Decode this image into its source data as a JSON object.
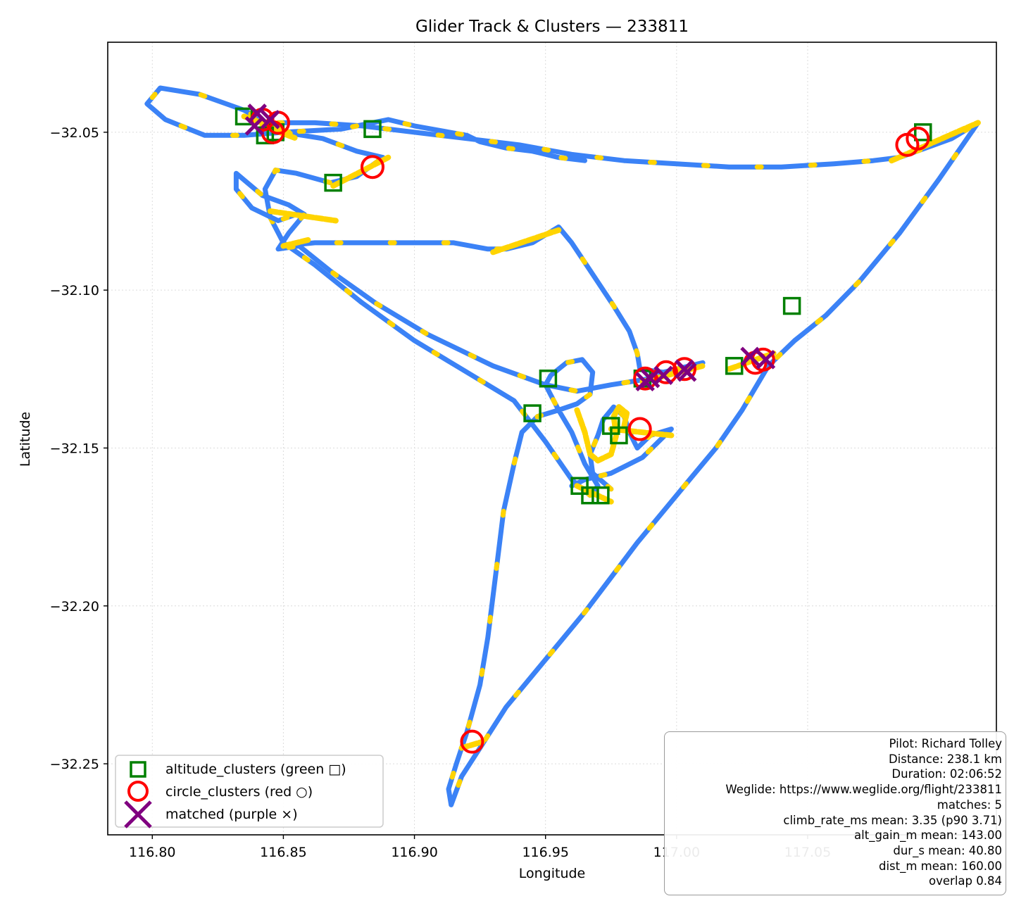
{
  "chart_data": {
    "type": "scatter",
    "title": "Glider Track & Clusters — 233811",
    "xlabel": "Longitude",
    "ylabel": "Latitude",
    "xlim": [
      116.783,
      117.122
    ],
    "ylim": [
      -32.2725,
      -32.0215
    ],
    "grid": true,
    "xticks": [
      116.8,
      116.85,
      116.9,
      116.95,
      117.0,
      117.05
    ],
    "xtick_labels": [
      "116.80",
      "116.85",
      "116.90",
      "116.95",
      "117.00",
      "117.05"
    ],
    "yticks": [
      -32.05,
      -32.1,
      -32.15,
      -32.2,
      -32.25
    ],
    "ytick_labels": [
      "−32.05",
      "−32.10",
      "−32.15",
      "−32.20",
      "−32.25"
    ],
    "colors": {
      "track": "#3b82f6",
      "climb": "#ffd400",
      "altitude_clusters": "#008000",
      "circle_clusters": "#ff0000",
      "matched": "#800080",
      "grid": "#dcdcdc"
    },
    "track": [
      [
        116.848,
        -32.047
      ],
      [
        116.862,
        -32.047
      ],
      [
        116.88,
        -32.048
      ],
      [
        116.9,
        -32.05
      ],
      [
        116.92,
        -32.052
      ],
      [
        116.94,
        -32.054
      ],
      [
        116.96,
        -32.057
      ],
      [
        116.98,
        -32.059
      ],
      [
        117.0,
        -32.06
      ],
      [
        117.02,
        -32.061
      ],
      [
        117.04,
        -32.061
      ],
      [
        117.06,
        -32.06
      ],
      [
        117.075,
        -32.059
      ],
      [
        117.085,
        -32.058
      ],
      [
        117.095,
        -32.055
      ],
      [
        117.105,
        -32.052
      ],
      [
        117.115,
        -32.047
      ],
      [
        117.1,
        -32.065
      ],
      [
        117.085,
        -32.082
      ],
      [
        117.07,
        -32.097
      ],
      [
        117.057,
        -32.108
      ],
      [
        117.045,
        -32.116
      ],
      [
        117.035,
        -32.124
      ],
      [
        117.025,
        -32.138
      ],
      [
        117.015,
        -32.15
      ],
      [
        117.005,
        -32.16
      ],
      [
        116.995,
        -32.17
      ],
      [
        116.985,
        -32.18
      ],
      [
        116.975,
        -32.191
      ],
      [
        116.965,
        -32.202
      ],
      [
        116.955,
        -32.212
      ],
      [
        116.945,
        -32.222
      ],
      [
        116.935,
        -32.232
      ],
      [
        116.925,
        -32.245
      ],
      [
        116.918,
        -32.254
      ],
      [
        116.914,
        -32.263
      ],
      [
        116.913,
        -32.258
      ],
      [
        116.916,
        -32.25
      ],
      [
        116.92,
        -32.24
      ],
      [
        116.925,
        -32.225
      ],
      [
        116.928,
        -32.21
      ],
      [
        116.931,
        -32.19
      ],
      [
        116.934,
        -32.17
      ],
      [
        116.938,
        -32.155
      ],
      [
        116.941,
        -32.145
      ],
      [
        116.947,
        -32.14
      ],
      [
        116.955,
        -32.138
      ],
      [
        116.962,
        -32.136
      ],
      [
        116.967,
        -32.133
      ],
      [
        116.968,
        -32.126
      ],
      [
        116.964,
        -32.122
      ],
      [
        116.958,
        -32.123
      ],
      [
        116.952,
        -32.127
      ],
      [
        116.95,
        -32.13
      ],
      [
        116.955,
        -32.138
      ],
      [
        116.96,
        -32.145
      ],
      [
        116.965,
        -32.155
      ],
      [
        116.97,
        -32.162
      ],
      [
        116.967,
        -32.165
      ],
      [
        116.96,
        -32.16
      ],
      [
        116.95,
        -32.148
      ],
      [
        116.938,
        -32.135
      ],
      [
        116.92,
        -32.126
      ],
      [
        116.9,
        -32.116
      ],
      [
        116.88,
        -32.104
      ],
      [
        116.862,
        -32.092
      ],
      [
        116.85,
        -32.085
      ],
      [
        116.845,
        -32.077
      ],
      [
        116.843,
        -32.068
      ],
      [
        116.847,
        -32.062
      ],
      [
        116.855,
        -32.063
      ],
      [
        116.868,
        -32.066
      ],
      [
        116.878,
        -32.064
      ],
      [
        116.888,
        -32.058
      ],
      [
        116.878,
        -32.056
      ],
      [
        116.865,
        -32.052
      ],
      [
        116.85,
        -32.05
      ],
      [
        116.835,
        -32.051
      ],
      [
        116.82,
        -32.051
      ],
      [
        116.805,
        -32.046
      ],
      [
        116.798,
        -32.041
      ],
      [
        116.803,
        -32.036
      ],
      [
        116.818,
        -32.038
      ],
      [
        116.835,
        -32.043
      ],
      [
        116.85,
        -32.05
      ],
      [
        116.872,
        -32.049
      ],
      [
        116.89,
        -32.046
      ],
      [
        116.9,
        -32.048
      ],
      [
        116.92,
        -32.051
      ],
      [
        116.925,
        -32.053
      ],
      [
        116.935,
        -32.055
      ],
      [
        116.945,
        -32.056
      ],
      [
        116.955,
        -32.058
      ],
      [
        116.965,
        -32.059
      ]
    ],
    "track2": [
      [
        116.85,
        -32.086
      ],
      [
        116.862,
        -32.085
      ],
      [
        116.88,
        -32.085
      ],
      [
        116.9,
        -32.085
      ],
      [
        116.915,
        -32.085
      ],
      [
        116.928,
        -32.087
      ],
      [
        116.935,
        -32.087
      ],
      [
        116.945,
        -32.085
      ],
      [
        116.955,
        -32.08
      ],
      [
        116.96,
        -32.085
      ],
      [
        116.968,
        -32.095
      ],
      [
        116.976,
        -32.105
      ],
      [
        116.982,
        -32.113
      ],
      [
        116.985,
        -32.12
      ],
      [
        116.986,
        -32.125
      ],
      [
        116.995,
        -32.126
      ],
      [
        117.005,
        -32.124
      ],
      [
        117.01,
        -32.123
      ],
      [
        117.0,
        -32.126
      ],
      [
        116.99,
        -32.128
      ],
      [
        116.975,
        -32.13
      ],
      [
        116.962,
        -32.132
      ],
      [
        116.95,
        -32.13
      ],
      [
        116.93,
        -32.124
      ],
      [
        116.905,
        -32.114
      ],
      [
        116.885,
        -32.104
      ],
      [
        116.868,
        -32.094
      ],
      [
        116.856,
        -32.086
      ],
      [
        116.848,
        -32.087
      ],
      [
        116.852,
        -32.082
      ],
      [
        116.858,
        -32.076
      ],
      [
        116.852,
        -32.073
      ],
      [
        116.842,
        -32.07
      ],
      [
        116.832,
        -32.063
      ],
      [
        116.832,
        -32.068
      ],
      [
        116.838,
        -32.074
      ],
      [
        116.848,
        -32.078
      ],
      [
        116.855,
        -32.076
      ]
    ],
    "track3": [
      [
        116.975,
        -32.163
      ],
      [
        116.968,
        -32.158
      ],
      [
        116.967,
        -32.152
      ],
      [
        116.97,
        -32.146
      ],
      [
        116.972,
        -32.141
      ],
      [
        116.976,
        -32.137
      ],
      [
        116.98,
        -32.14
      ],
      [
        116.982,
        -32.145
      ],
      [
        116.985,
        -32.15
      ],
      [
        116.99,
        -32.146
      ],
      [
        116.998,
        -32.144
      ],
      [
        116.987,
        -32.153
      ],
      [
        116.975,
        -32.158
      ],
      [
        116.965,
        -32.16
      ],
      [
        116.96,
        -32.162
      ]
    ],
    "climb_segments": [
      [
        [
          116.962,
          -32.138
        ],
        [
          116.965,
          -32.145
        ],
        [
          116.967,
          -32.152
        ],
        [
          116.97,
          -32.154
        ],
        [
          116.975,
          -32.152
        ],
        [
          116.977,
          -32.146
        ],
        [
          116.976,
          -32.14
        ],
        [
          116.978,
          -32.137
        ],
        [
          116.981,
          -32.139
        ],
        [
          116.98,
          -32.143
        ]
      ],
      [
        [
          116.975,
          -32.144
        ],
        [
          116.998,
          -32.146
        ]
      ],
      [
        [
          116.987,
          -32.129
        ],
        [
          117.01,
          -32.124
        ]
      ],
      [
        [
          117.02,
          -32.125
        ],
        [
          117.037,
          -32.12
        ]
      ],
      [
        [
          116.835,
          -32.045
        ],
        [
          116.852,
          -32.05
        ]
      ],
      [
        [
          116.842,
          -32.048
        ],
        [
          116.855,
          -32.052
        ]
      ],
      [
        [
          116.869,
          -32.067
        ],
        [
          116.89,
          -32.058
        ]
      ],
      [
        [
          116.845,
          -32.075
        ],
        [
          116.87,
          -32.078
        ]
      ],
      [
        [
          116.85,
          -32.086
        ],
        [
          116.86,
          -32.084
        ]
      ],
      [
        [
          116.93,
          -32.088
        ],
        [
          116.955,
          -32.081
        ]
      ],
      [
        [
          117.082,
          -32.059
        ],
        [
          117.115,
          -32.047
        ]
      ],
      [
        [
          116.962,
          -32.162
        ],
        [
          116.975,
          -32.167
        ]
      ],
      [
        [
          116.918,
          -32.245
        ],
        [
          116.926,
          -32.243
        ]
      ]
    ],
    "altitude_clusters": [
      [
        116.835,
        -32.045
      ],
      [
        116.843,
        -32.051
      ],
      [
        116.847,
        -32.05
      ],
      [
        116.884,
        -32.049
      ],
      [
        116.869,
        -32.066
      ],
      [
        117.094,
        -32.05
      ],
      [
        117.044,
        -32.105
      ],
      [
        117.022,
        -32.124
      ],
      [
        116.987,
        -32.128
      ],
      [
        116.951,
        -32.128
      ],
      [
        116.945,
        -32.139
      ],
      [
        116.975,
        -32.143
      ],
      [
        116.978,
        -32.146
      ],
      [
        116.963,
        -32.162
      ],
      [
        116.967,
        -32.165
      ],
      [
        116.971,
        -32.165
      ]
    ],
    "circle_clusters": [
      [
        116.842,
        -32.046
      ],
      [
        116.848,
        -32.047
      ],
      [
        116.846,
        -32.05
      ],
      [
        116.884,
        -32.061
      ],
      [
        117.088,
        -32.054
      ],
      [
        117.092,
        -32.052
      ],
      [
        117.033,
        -32.122
      ],
      [
        117.03,
        -32.123
      ],
      [
        117.003,
        -32.125
      ],
      [
        116.996,
        -32.126
      ],
      [
        116.988,
        -32.128
      ],
      [
        116.986,
        -32.144
      ],
      [
        116.922,
        -32.243
      ]
    ],
    "matched": [
      [
        116.84,
        -32.044
      ],
      [
        116.845,
        -32.046
      ],
      [
        116.839,
        -32.048
      ],
      [
        117.028,
        -32.121
      ],
      [
        117.034,
        -32.122
      ],
      [
        116.988,
        -32.129
      ],
      [
        117.003,
        -32.125
      ],
      [
        116.995,
        -32.127
      ],
      [
        116.99,
        -32.128
      ],
      [
        117.004,
        -32.126
      ]
    ],
    "legend": {
      "position": "lower-left",
      "items": [
        {
          "label": "altitude_clusters (green □)",
          "marker": "square",
          "color": "#008000"
        },
        {
          "label": "circle_clusters (red ○)",
          "marker": "circle",
          "color": "#ff0000"
        },
        {
          "label": "matched (purple ×)",
          "marker": "x",
          "color": "#800080"
        }
      ]
    }
  },
  "stats": {
    "lines": [
      "Pilot: Richard Tolley",
      "Distance: 238.1 km",
      "Duration: 02:06:52",
      "Weglide: https://www.weglide.org/flight/233811",
      "matches: 5",
      "climb_rate_ms mean: 3.35 (p90 3.71)",
      "alt_gain_m mean: 143.00",
      "dur_s mean: 40.80",
      "dist_m mean: 160.00",
      "overlap 0.84"
    ]
  }
}
